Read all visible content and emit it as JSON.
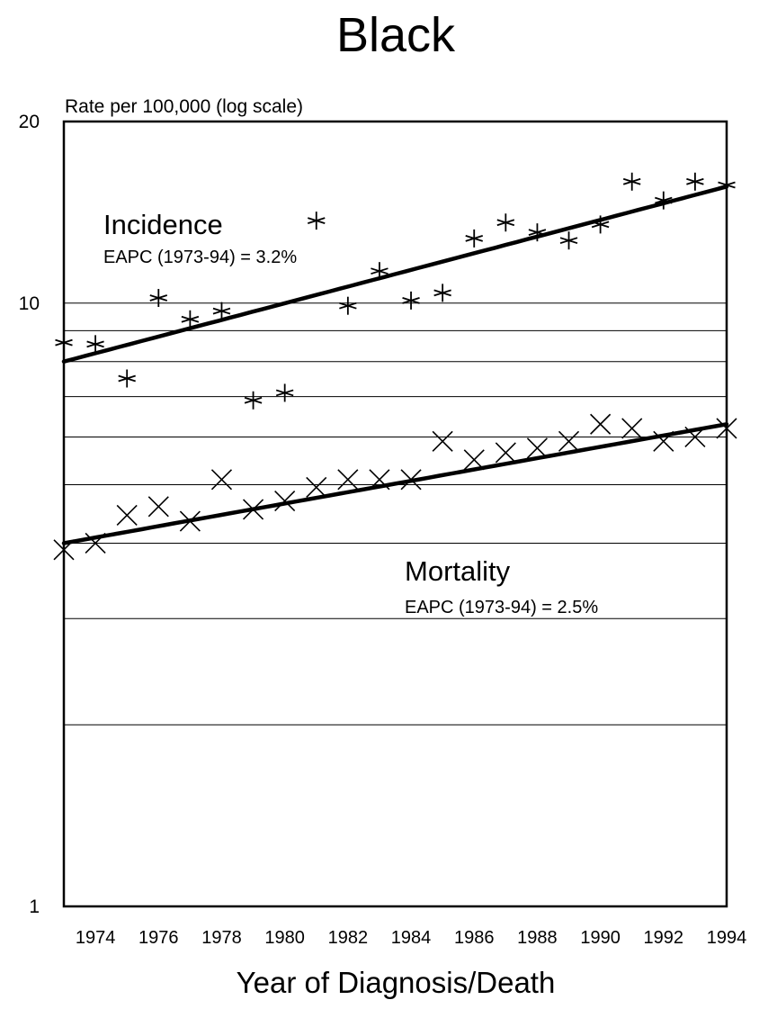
{
  "chart_data": {
    "type": "scatter",
    "title": "Black",
    "ylabel": "Rate per 100,000 (log scale)",
    "xlabel": "Year of Diagnosis/Death",
    "yscale": "log",
    "ylim": [
      1,
      20
    ],
    "xlim": [
      1973,
      1994
    ],
    "y_ticks": [
      {
        "value": 20,
        "label": "20"
      },
      {
        "value": 10,
        "label": "10"
      },
      {
        "value": 1,
        "label": "1"
      }
    ],
    "y_gridlines": [
      2,
      3,
      4,
      5,
      6,
      7,
      8,
      9,
      10
    ],
    "x_ticks": [
      1974,
      1976,
      1978,
      1980,
      1982,
      1984,
      1986,
      1988,
      1990,
      1992,
      1994
    ],
    "x_tick_labels": [
      "1974",
      "1976",
      "1978",
      "1980",
      "1982",
      "1984",
      "1986",
      "1988",
      "1990",
      "1992",
      "1994"
    ],
    "x": [
      1973,
      1974,
      1975,
      1976,
      1977,
      1978,
      1979,
      1980,
      1981,
      1982,
      1983,
      1984,
      1985,
      1986,
      1987,
      1988,
      1989,
      1990,
      1991,
      1992,
      1993,
      1994
    ],
    "series": [
      {
        "name": "Incidence",
        "marker": "asterisk",
        "eapc_label": "EAPC (1973-94) = 3.2%",
        "values": [
          8.6,
          8.55,
          7.5,
          10.2,
          9.4,
          9.7,
          6.9,
          7.1,
          13.7,
          9.9,
          11.3,
          10.1,
          10.4,
          12.8,
          13.6,
          13.1,
          12.7,
          13.5,
          15.9,
          14.8,
          15.9,
          15.7
        ],
        "trend": [
          8.0,
          15.6
        ]
      },
      {
        "name": "Mortality",
        "marker": "x",
        "eapc_label": "EAPC (1973-94) = 2.5%",
        "values": [
          3.9,
          4.0,
          4.45,
          4.6,
          4.35,
          5.1,
          4.55,
          4.7,
          4.95,
          5.1,
          5.1,
          5.1,
          5.9,
          5.5,
          5.65,
          5.75,
          5.9,
          6.3,
          6.2,
          5.9,
          6.0,
          6.2
        ],
        "trend": [
          4.0,
          6.3
        ]
      }
    ],
    "grid": true,
    "legend": "none"
  }
}
